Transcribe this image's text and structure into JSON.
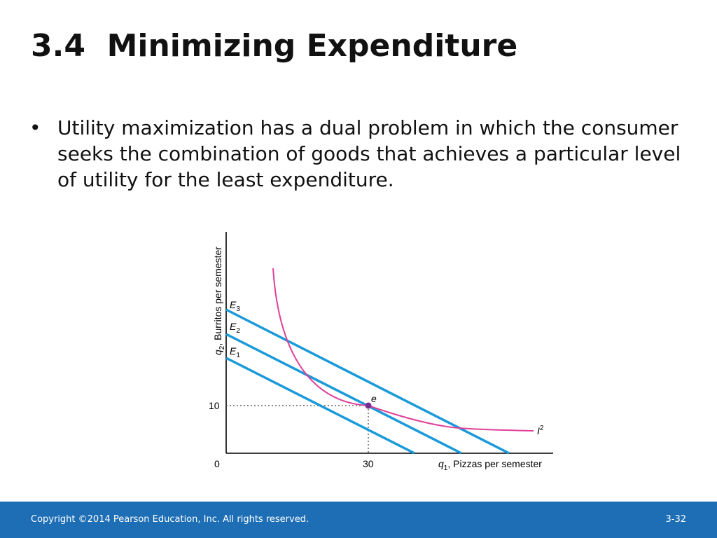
{
  "title": "3.4  Minimizing Expenditure",
  "bullet": "Utility maximization has a dual problem in which the consumer seeks the combination of goods that achieves a particular level of utility for the least expenditure.",
  "chart_data": {
    "type": "line",
    "xlabel_var": "q",
    "xlabel_sub": "1",
    "xlabel_text": ", Pizzas per semester",
    "ylabel_var": "q",
    "ylabel_sub": "2",
    "ylabel_text": ", Burritos per semester",
    "origin_label": "0",
    "x_tick": "30",
    "y_tick": "10",
    "point": {
      "label": "e",
      "x": 30,
      "y": 10
    },
    "budget_lines": [
      {
        "name": "E",
        "sub": "3"
      },
      {
        "name": "E",
        "sub": "2"
      },
      {
        "name": "E",
        "sub": "1"
      }
    ],
    "indifference_curve": {
      "name": "I",
      "sup": "2"
    },
    "colors": {
      "budget": "#1a9ad9",
      "indifference": "#e0409a",
      "point": "#7b2d8e"
    }
  },
  "footer": {
    "copyright": "Copyright ©2014 Pearson Education, Inc. All rights reserved.",
    "page": "3-32"
  }
}
